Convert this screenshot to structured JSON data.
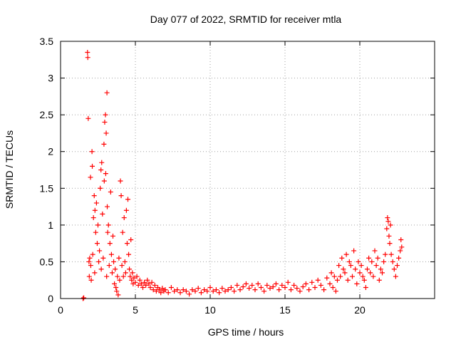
{
  "chart_data": {
    "type": "scatter",
    "title": "Day 077 of 2022, SRMTID for receiver mtla",
    "xlabel": "GPS time / hours",
    "ylabel": "SRMTID / TECUs",
    "xlim": [
      0,
      25
    ],
    "ylim": [
      0,
      3.5
    ],
    "xticks": [
      0,
      5,
      10,
      15,
      20
    ],
    "xtick_labels": [
      "0",
      "5",
      "10",
      "15",
      "20"
    ],
    "yticks": [
      0,
      0.5,
      1,
      1.5,
      2,
      2.5,
      3,
      3.5
    ],
    "ytick_labels": [
      "0",
      "0.5",
      "1",
      "1.5",
      "2",
      "2.5",
      "3",
      "3.5"
    ],
    "grid": true,
    "marker": "+",
    "color": "#ff0000",
    "series": [
      {
        "name": "SRMTID",
        "points": [
          [
            1.5,
            0.0
          ],
          [
            1.55,
            0.01
          ],
          [
            1.8,
            3.35
          ],
          [
            1.82,
            3.28
          ],
          [
            1.85,
            2.45
          ],
          [
            1.9,
            0.5
          ],
          [
            1.92,
            0.3
          ],
          [
            1.95,
            0.55
          ],
          [
            2.0,
            1.65
          ],
          [
            2.02,
            0.45
          ],
          [
            2.05,
            0.25
          ],
          [
            2.1,
            2.0
          ],
          [
            2.12,
            1.8
          ],
          [
            2.15,
            0.6
          ],
          [
            2.2,
            1.1
          ],
          [
            2.25,
            1.4
          ],
          [
            2.28,
            0.35
          ],
          [
            2.3,
            1.2
          ],
          [
            2.35,
            0.9
          ],
          [
            2.4,
            1.3
          ],
          [
            2.45,
            0.75
          ],
          [
            2.5,
            1.0
          ],
          [
            2.55,
            0.5
          ],
          [
            2.6,
            0.65
          ],
          [
            2.65,
            1.5
          ],
          [
            2.7,
            1.75
          ],
          [
            2.72,
            0.4
          ],
          [
            2.75,
            1.85
          ],
          [
            2.8,
            1.15
          ],
          [
            2.85,
            0.55
          ],
          [
            2.9,
            2.1
          ],
          [
            2.92,
            1.6
          ],
          [
            2.95,
            2.4
          ],
          [
            3.0,
            2.5
          ],
          [
            3.02,
            1.7
          ],
          [
            3.05,
            2.25
          ],
          [
            3.08,
            0.3
          ],
          [
            3.1,
            2.8
          ],
          [
            3.12,
            1.25
          ],
          [
            3.15,
            0.9
          ],
          [
            3.2,
            1.0
          ],
          [
            3.25,
            0.45
          ],
          [
            3.3,
            0.75
          ],
          [
            3.35,
            1.45
          ],
          [
            3.4,
            0.6
          ],
          [
            3.45,
            0.35
          ],
          [
            3.5,
            0.85
          ],
          [
            3.55,
            0.5
          ],
          [
            3.6,
            0.2
          ],
          [
            3.65,
            0.4
          ],
          [
            3.7,
            0.15
          ],
          [
            3.75,
            0.1
          ],
          [
            3.8,
            0.3
          ],
          [
            3.85,
            0.05
          ],
          [
            3.9,
            0.55
          ],
          [
            3.95,
            0.25
          ],
          [
            4.0,
            1.6
          ],
          [
            4.05,
            1.4
          ],
          [
            4.1,
            0.45
          ],
          [
            4.15,
            0.9
          ],
          [
            4.2,
            0.3
          ],
          [
            4.25,
            1.1
          ],
          [
            4.3,
            0.5
          ],
          [
            4.35,
            0.35
          ],
          [
            4.4,
            1.2
          ],
          [
            4.45,
            0.75
          ],
          [
            4.5,
            1.35
          ],
          [
            4.55,
            0.6
          ],
          [
            4.6,
            0.4
          ],
          [
            4.65,
            0.3
          ],
          [
            4.7,
            0.8
          ],
          [
            4.75,
            0.25
          ],
          [
            4.8,
            0.35
          ],
          [
            4.85,
            0.2
          ],
          [
            4.9,
            0.28
          ],
          [
            5.0,
            0.22
          ],
          [
            5.1,
            0.3
          ],
          [
            5.2,
            0.18
          ],
          [
            5.3,
            0.25
          ],
          [
            5.4,
            0.2
          ],
          [
            5.5,
            0.15
          ],
          [
            5.6,
            0.22
          ],
          [
            5.7,
            0.18
          ],
          [
            5.8,
            0.25
          ],
          [
            5.9,
            0.2
          ],
          [
            6.0,
            0.15
          ],
          [
            6.1,
            0.22
          ],
          [
            6.2,
            0.12
          ],
          [
            6.3,
            0.18
          ],
          [
            6.4,
            0.1
          ],
          [
            6.5,
            0.15
          ],
          [
            6.6,
            0.12
          ],
          [
            6.7,
            0.08
          ],
          [
            6.8,
            0.14
          ],
          [
            6.9,
            0.1
          ],
          [
            7.0,
            0.12
          ],
          [
            7.2,
            0.08
          ],
          [
            7.4,
            0.15
          ],
          [
            7.6,
            0.1
          ],
          [
            7.8,
            0.12
          ],
          [
            8.0,
            0.08
          ],
          [
            8.2,
            0.12
          ],
          [
            8.4,
            0.1
          ],
          [
            8.6,
            0.06
          ],
          [
            8.8,
            0.12
          ],
          [
            9.0,
            0.1
          ],
          [
            9.2,
            0.14
          ],
          [
            9.4,
            0.08
          ],
          [
            9.6,
            0.12
          ],
          [
            9.8,
            0.1
          ],
          [
            10.0,
            0.15
          ],
          [
            10.2,
            0.1
          ],
          [
            10.4,
            0.12
          ],
          [
            10.6,
            0.08
          ],
          [
            10.8,
            0.14
          ],
          [
            11.0,
            0.1
          ],
          [
            11.2,
            0.12
          ],
          [
            11.4,
            0.15
          ],
          [
            11.6,
            0.1
          ],
          [
            11.8,
            0.18
          ],
          [
            12.0,
            0.12
          ],
          [
            12.2,
            0.16
          ],
          [
            12.4,
            0.2
          ],
          [
            12.6,
            0.14
          ],
          [
            12.8,
            0.18
          ],
          [
            13.0,
            0.12
          ],
          [
            13.2,
            0.2
          ],
          [
            13.4,
            0.15
          ],
          [
            13.6,
            0.1
          ],
          [
            13.8,
            0.18
          ],
          [
            14.0,
            0.14
          ],
          [
            14.2,
            0.16
          ],
          [
            14.4,
            0.2
          ],
          [
            14.6,
            0.12
          ],
          [
            14.8,
            0.18
          ],
          [
            15.0,
            0.15
          ],
          [
            15.2,
            0.22
          ],
          [
            15.4,
            0.12
          ],
          [
            15.6,
            0.18
          ],
          [
            15.8,
            0.14
          ],
          [
            16.0,
            0.1
          ],
          [
            16.2,
            0.16
          ],
          [
            16.4,
            0.2
          ],
          [
            16.6,
            0.12
          ],
          [
            16.8,
            0.22
          ],
          [
            17.0,
            0.15
          ],
          [
            17.2,
            0.25
          ],
          [
            17.4,
            0.18
          ],
          [
            17.6,
            0.12
          ],
          [
            17.8,
            0.28
          ],
          [
            18.0,
            0.2
          ],
          [
            18.1,
            0.35
          ],
          [
            18.2,
            0.15
          ],
          [
            18.3,
            0.3
          ],
          [
            18.4,
            0.1
          ],
          [
            18.5,
            0.25
          ],
          [
            18.6,
            0.45
          ],
          [
            18.7,
            0.3
          ],
          [
            18.8,
            0.55
          ],
          [
            18.9,
            0.4
          ],
          [
            19.0,
            0.35
          ],
          [
            19.1,
            0.6
          ],
          [
            19.2,
            0.25
          ],
          [
            19.3,
            0.5
          ],
          [
            19.4,
            0.45
          ],
          [
            19.5,
            0.3
          ],
          [
            19.6,
            0.65
          ],
          [
            19.7,
            0.4
          ],
          [
            19.8,
            0.2
          ],
          [
            19.9,
            0.5
          ],
          [
            20.0,
            0.35
          ],
          [
            20.1,
            0.45
          ],
          [
            20.2,
            0.3
          ],
          [
            20.3,
            0.25
          ],
          [
            20.4,
            0.15
          ],
          [
            20.5,
            0.4
          ],
          [
            20.6,
            0.55
          ],
          [
            20.7,
            0.35
          ],
          [
            20.8,
            0.5
          ],
          [
            20.9,
            0.3
          ],
          [
            21.0,
            0.65
          ],
          [
            21.1,
            0.45
          ],
          [
            21.2,
            0.55
          ],
          [
            21.3,
            0.25
          ],
          [
            21.4,
            0.4
          ],
          [
            21.5,
            0.35
          ],
          [
            21.6,
            0.5
          ],
          [
            21.7,
            0.6
          ],
          [
            21.8,
            0.95
          ],
          [
            21.85,
            1.1
          ],
          [
            21.9,
            1.05
          ],
          [
            21.95,
            0.85
          ],
          [
            22.0,
            0.75
          ],
          [
            22.05,
            1.0
          ],
          [
            22.1,
            0.6
          ],
          [
            22.2,
            0.5
          ],
          [
            22.3,
            0.4
          ],
          [
            22.4,
            0.3
          ],
          [
            22.5,
            0.45
          ],
          [
            22.6,
            0.55
          ],
          [
            22.7,
            0.65
          ],
          [
            22.75,
            0.8
          ],
          [
            22.8,
            0.7
          ]
        ]
      }
    ]
  }
}
